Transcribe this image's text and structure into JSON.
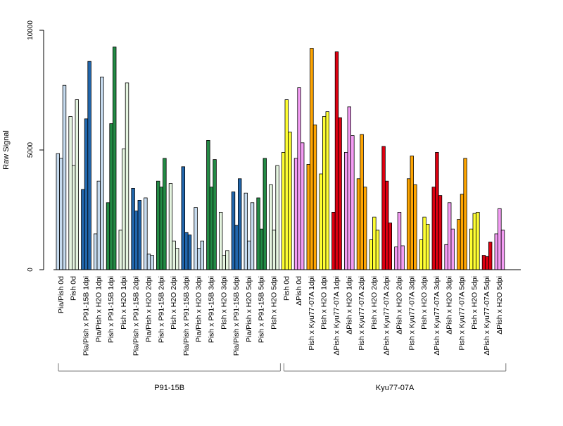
{
  "chart_data": {
    "type": "bar",
    "title": "",
    "xlabel": "",
    "ylabel": "Raw Signal",
    "ylim": [
      0,
      10000
    ],
    "yticks": [
      0,
      5000,
      10000
    ],
    "grid": false,
    "categories": [
      "Pia/Pish 0d",
      "Pish 0d",
      "Pia/Pish x P91-15B 1dpi",
      "Pia/Pish x H2O 1dpi",
      "Pish x P91-15B 1dpi",
      "Pish x H2O 1dpi",
      "Pia/Pish x P91-15B 2dpi",
      "Pia/Pish x H2O 2dpi",
      "Pish x P91-15B 2dpi",
      "Pish x H2O 2dpi",
      "Pia/Pish x P91-15B 3dpi",
      "Pia/Pish x H2O 3dpi",
      "Pish x P91-15B 3dpi",
      "Pish x H2O 3dpi",
      "Pia/Pish x P91-15B 5dpi",
      "Pia/Pish x H2O 5dpi",
      "Pish x P91-15B 5dpi",
      "Pish x H2O 5dpi",
      "Pish 0d",
      "ΔPish 0d",
      "Pish x Kyu77-07A 1dpi",
      "Pish x H2O 1dpi",
      "ΔPish x Kyu77-07A 1dpi",
      "ΔPish x H2O 1dpi",
      "Pish x Kyu77-07A 2dpi",
      "Pish x H2O 2dpi",
      "ΔPish x Kyu77-07A 2dpi",
      "ΔPish x H2O 2dpi",
      "Pish x Kyu77-07A 3dpi",
      "Pish x H2O 3dpi",
      "ΔPish x Kyu77-07A 3dpi",
      "ΔPish x H2O 3dpi",
      "Pish x Kyu77-07A 5dpi",
      "Pish x H2O 5dpi",
      "ΔPish x Kyu77-07A 5dpi",
      "ΔPish x H2O 5dpi"
    ],
    "colors": {
      "light_blue": "#c6dbef",
      "dark_blue": "#2166ac",
      "light_green": "#e5f5e0",
      "dark_green": "#238b45",
      "yellow": "#ffff33",
      "pink": "#f49cf4",
      "orange": "#ffa500",
      "red": "#dd0011"
    },
    "bar_colors": [
      "light_blue",
      "light_green",
      "dark_blue",
      "light_blue",
      "dark_green",
      "light_green",
      "dark_blue",
      "light_blue",
      "dark_green",
      "light_green",
      "dark_blue",
      "light_blue",
      "dark_green",
      "light_green",
      "dark_blue",
      "light_blue",
      "dark_green",
      "light_green",
      "yellow",
      "pink",
      "orange",
      "yellow",
      "red",
      "pink",
      "orange",
      "yellow",
      "red",
      "pink",
      "orange",
      "yellow",
      "red",
      "pink",
      "orange",
      "yellow",
      "red",
      "pink"
    ],
    "values": [
      [
        4850,
        4650,
        7700
      ],
      [
        6400,
        4350,
        7100
      ],
      [
        3350,
        6300,
        8700
      ],
      [
        1500,
        3700,
        8050
      ],
      [
        2800,
        6100,
        9300
      ],
      [
        1650,
        5050,
        7800
      ],
      [
        3400,
        2450,
        2900
      ],
      [
        3000,
        650,
        600
      ],
      [
        3700,
        3450,
        4650
      ],
      [
        3600,
        1200,
        900
      ],
      [
        4300,
        1550,
        1450
      ],
      [
        2600,
        900,
        1200
      ],
      [
        5400,
        3450,
        4600
      ],
      [
        2400,
        600,
        800
      ],
      [
        3250,
        1850,
        3800
      ],
      [
        3200,
        1200,
        2800
      ],
      [
        3000,
        1700,
        4650
      ],
      [
        3550,
        1650,
        4350
      ],
      [
        4900,
        7100,
        5750
      ],
      [
        4650,
        7600,
        5300
      ],
      [
        4400,
        9250,
        6050
      ],
      [
        4000,
        6400,
        6600
      ],
      [
        2400,
        9100,
        6350
      ],
      [
        4900,
        6800,
        5600
      ],
      [
        3800,
        5650,
        3450
      ],
      [
        1250,
        2200,
        1650
      ],
      [
        5150,
        3700,
        1950
      ],
      [
        950,
        2400,
        1000
      ],
      [
        3800,
        4750,
        3550
      ],
      [
        1250,
        2200,
        1900
      ],
      [
        3450,
        4900,
        3100
      ],
      [
        1050,
        2800,
        1700
      ],
      [
        2100,
        3150,
        4650
      ],
      [
        1700,
        2350,
        2400
      ],
      [
        600,
        550,
        1150
      ],
      [
        1500,
        2550,
        1650
      ]
    ],
    "groups": [
      {
        "label": "P91-15B",
        "from": 0,
        "to": 17
      },
      {
        "label": "Kyu77-07A",
        "from": 18,
        "to": 35
      }
    ]
  }
}
